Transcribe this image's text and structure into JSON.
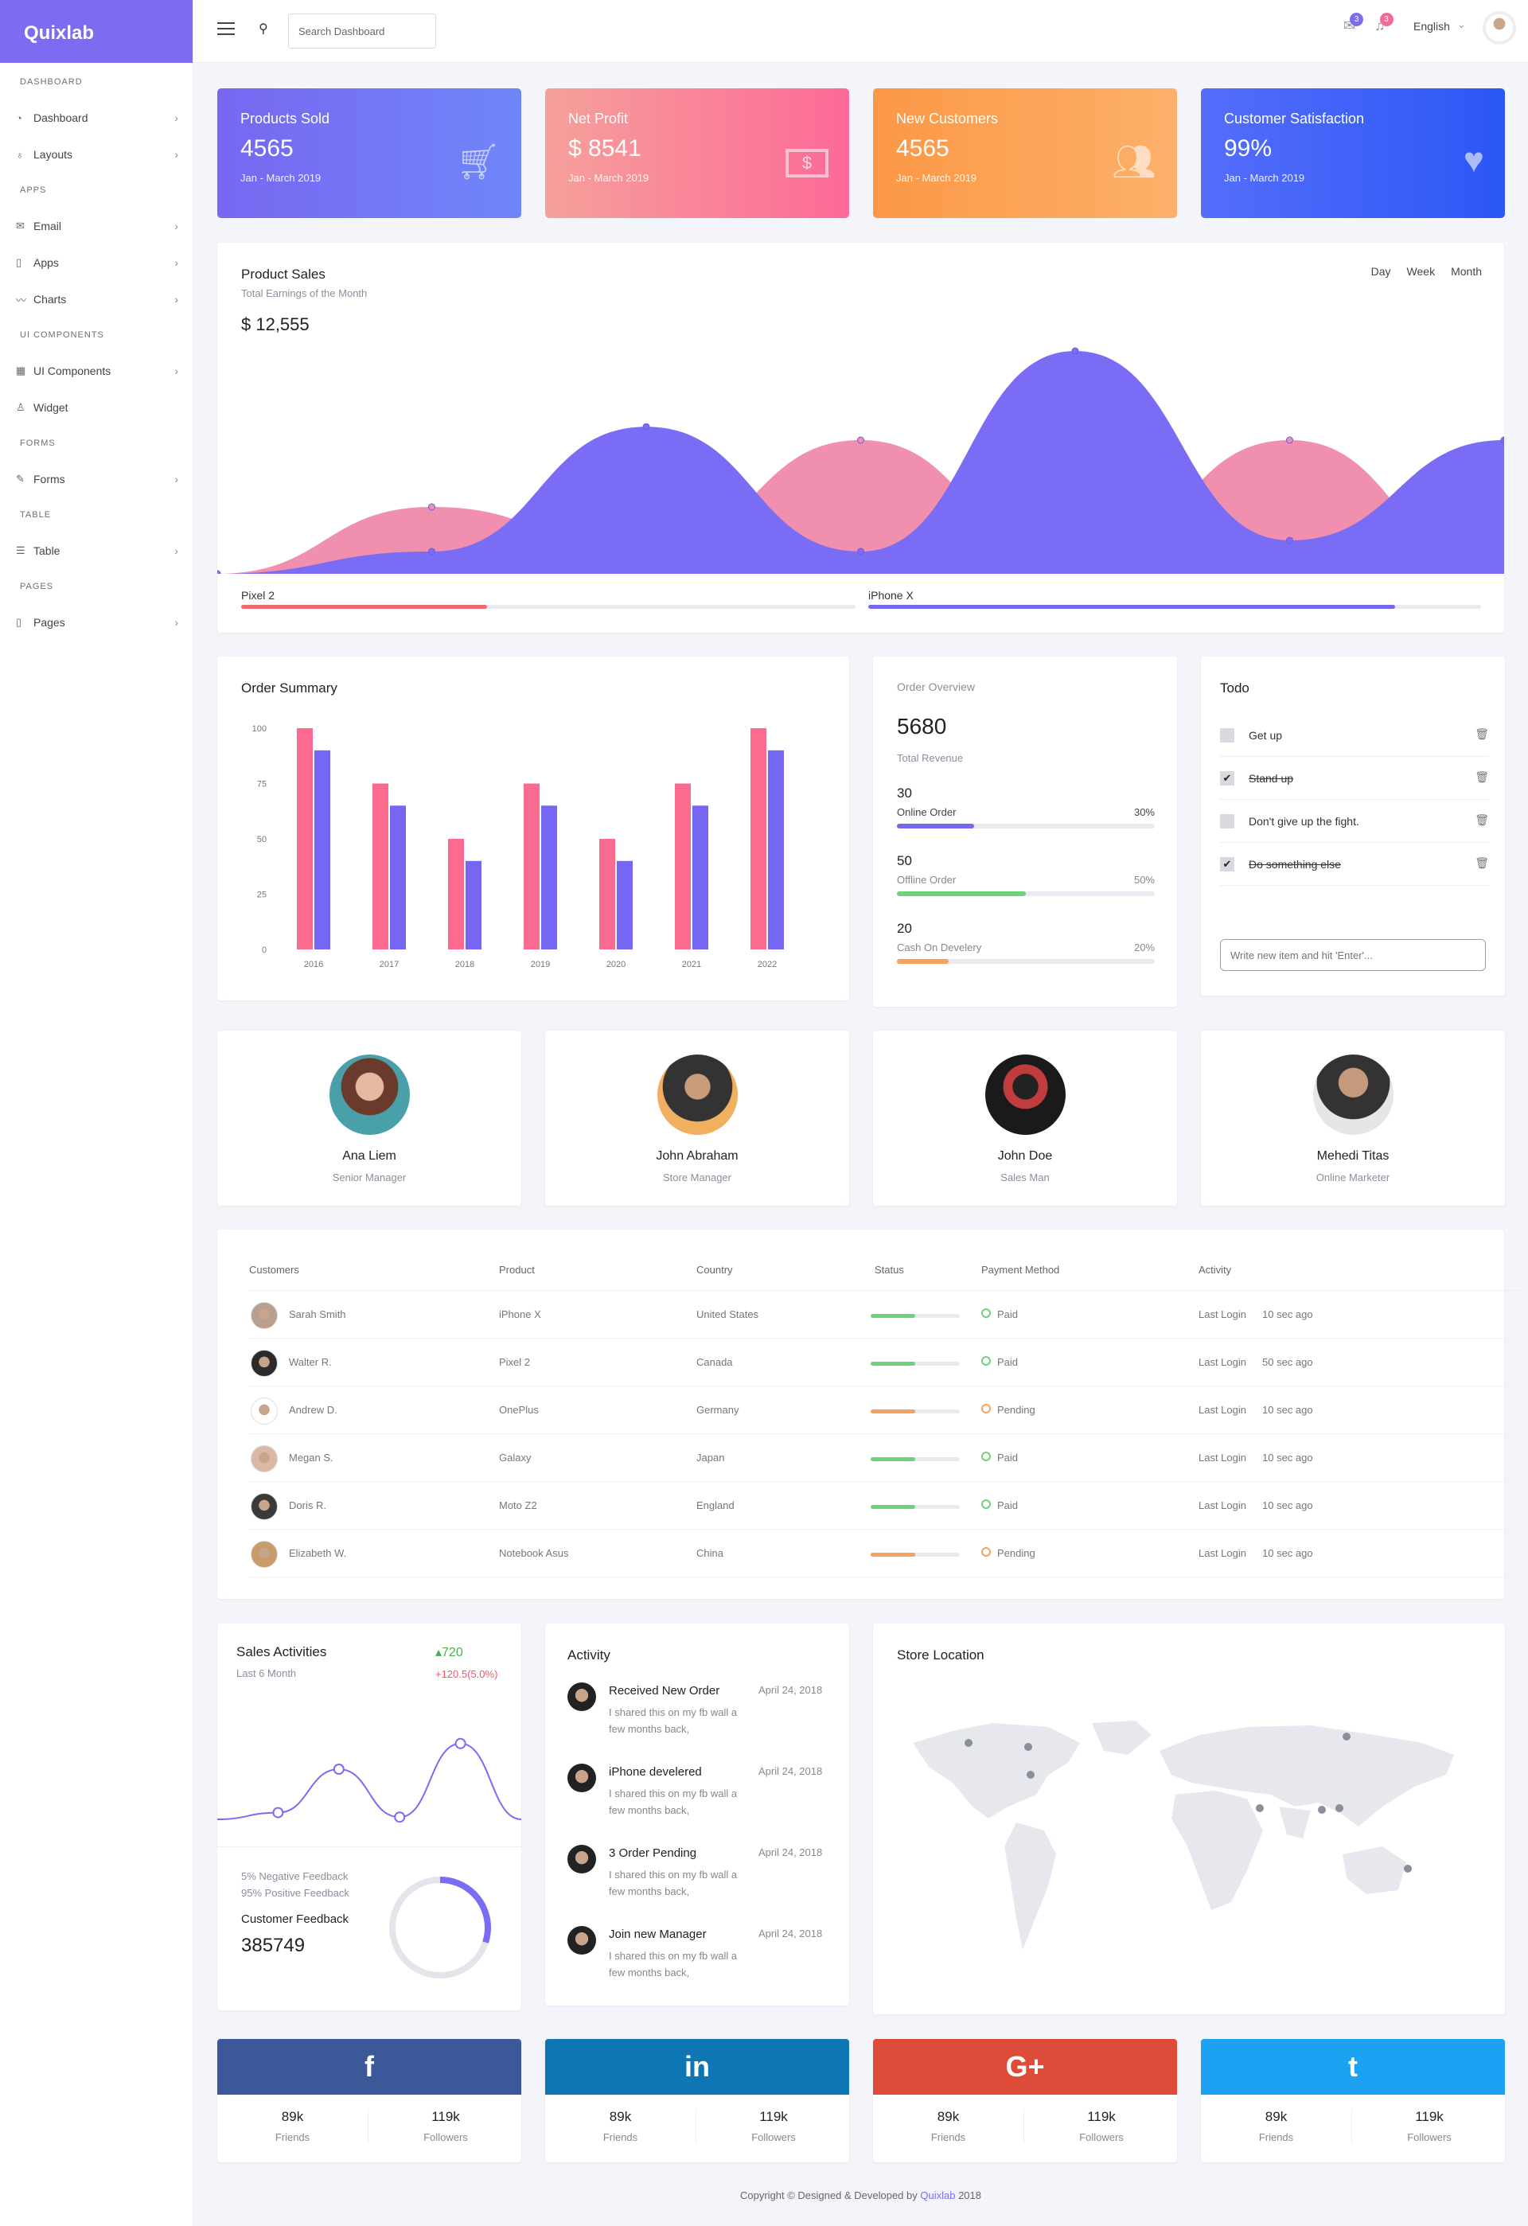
{
  "sidebar": {
    "brand": "Quixlab",
    "sections": {
      "dashboard": "DASHBOARD",
      "apps": "APPS",
      "ui": "UI COMPONENTS",
      "forms": "FORMS",
      "table": "TABLE",
      "pages": "PAGES"
    },
    "items": {
      "dashboard": "Dashboard",
      "layouts": "Layouts",
      "email": "Email",
      "apps": "Apps",
      "charts": "Charts",
      "ui_components": "UI Components",
      "widget": "Widget",
      "forms": "Forms",
      "table": "Table",
      "pages": "Pages"
    }
  },
  "topbar": {
    "search_placeholder": "Search Dashboard",
    "mail_badge": "3",
    "notif_badge": "3",
    "language": "English",
    "colors": {
      "mail_badge": "#7c6cf2",
      "notif_badge": "#f06b96"
    }
  },
  "stats": [
    {
      "title": "Products Sold",
      "value": "4565",
      "period": "Jan - March 2019",
      "icon": "cart-icon",
      "colors": [
        "#7867f1",
        "#6f86f9"
      ]
    },
    {
      "title": "Net Profit",
      "value": "$ 8541",
      "period": "Jan - March 2019",
      "icon": "money-icon",
      "colors": [
        "#f6a09b",
        "#fc6a97"
      ]
    },
    {
      "title": "New Customers",
      "value": "4565",
      "period": "Jan - March 2019",
      "icon": "users-icon",
      "colors": [
        "#fb9846",
        "#fdb06a"
      ]
    },
    {
      "title": "Customer Satisfaction",
      "value": "99%",
      "period": "Jan - March 2019",
      "icon": "heart-icon",
      "colors": [
        "#556dfb",
        "#2b57f5"
      ]
    }
  ],
  "product_sales": {
    "title": "Product Sales",
    "subtitle": "Total Earnings of the Month",
    "amount": "$ 12,555",
    "tabs": [
      "Day",
      "Week",
      "Month"
    ],
    "legend": [
      {
        "name": "Pixel 2",
        "progress": 0.4,
        "color": "#f06b6b"
      },
      {
        "name": "iPhone X",
        "progress": 0.86,
        "color": "#7467f0"
      }
    ]
  },
  "chart_data": [
    {
      "type": "area",
      "title": "Product Sales",
      "series": [
        {
          "name": "Pixel 2",
          "color": "#f08fae",
          "values": [
            0,
            30,
            10,
            60,
            5,
            60,
            0
          ]
        },
        {
          "name": "iPhone X",
          "color": "#7a6cf5",
          "values": [
            0,
            10,
            66,
            10,
            100,
            15,
            60
          ]
        }
      ],
      "ylim": [
        0,
        100
      ]
    },
    {
      "type": "bar",
      "title": "Order Summary",
      "categories": [
        "2016",
        "2017",
        "2018",
        "2019",
        "2020",
        "2021",
        "2022"
      ],
      "series": [
        {
          "color": "#fb6a8f",
          "values": [
            100,
            75,
            50,
            75,
            50,
            75,
            100
          ]
        },
        {
          "color": "#7567f3",
          "values": [
            90,
            65,
            40,
            65,
            40,
            65,
            90
          ]
        }
      ],
      "ylim": [
        0,
        100
      ],
      "yticks": [
        "100",
        "75",
        "50",
        "25",
        "0"
      ]
    },
    {
      "type": "line",
      "title": "Sales Activities",
      "values": [
        10,
        16,
        55,
        12,
        78,
        10
      ],
      "color": "#7a6cf5"
    }
  ],
  "order_summary": {
    "title": "Order Summary"
  },
  "order_overview": {
    "title": "Order Overview",
    "total": "5680",
    "total_label": "Total Revenue",
    "items": [
      {
        "count": "30",
        "label": "Online Order",
        "pct_text": "30%",
        "progress": 0.3,
        "color": "#7467f0"
      },
      {
        "count": "50",
        "label": "Offline Order",
        "pct_text": "50%",
        "progress": 0.5,
        "color": "#6fd27a"
      },
      {
        "count": "20",
        "label": "Cash On Develery",
        "pct_text": "20%",
        "progress": 0.2,
        "color": "#f6a25c"
      }
    ]
  },
  "todo": {
    "title": "Todo",
    "items": [
      {
        "text": "Get up",
        "done": false
      },
      {
        "text": "Stand up",
        "done": true
      },
      {
        "text": "Don't give up the fight.",
        "done": false
      },
      {
        "text": "Do something else",
        "done": true
      }
    ],
    "input_placeholder": "Write new item and hit 'Enter'..."
  },
  "people": [
    {
      "name": "Ana Liem",
      "role": "Senior Manager"
    },
    {
      "name": "John Abraham",
      "role": "Store Manager"
    },
    {
      "name": "John Doe",
      "role": "Sales Man"
    },
    {
      "name": "Mehedi Titas",
      "role": "Online Marketer"
    }
  ],
  "orders_table": {
    "headers": [
      "Customers",
      "Product",
      "Country",
      "Status",
      "Payment Method",
      "Activity"
    ],
    "rows": [
      {
        "customer": "Sarah Smith",
        "product": "iPhone X",
        "country": "United States",
        "status": "ok",
        "payment": "Paid",
        "activity": "Last Login",
        "time": "10 sec ago"
      },
      {
        "customer": "Walter R.",
        "product": "Pixel 2",
        "country": "Canada",
        "status": "ok",
        "payment": "Paid",
        "activity": "Last Login",
        "time": "50 sec ago"
      },
      {
        "customer": "Andrew D.",
        "product": "OnePlus",
        "country": "Germany",
        "status": "warn",
        "payment": "Pending",
        "activity": "Last Login",
        "time": "10 sec ago"
      },
      {
        "customer": "Megan S.",
        "product": "Galaxy",
        "country": "Japan",
        "status": "ok",
        "payment": "Paid",
        "activity": "Last Login",
        "time": "10 sec ago"
      },
      {
        "customer": "Doris R.",
        "product": "Moto Z2",
        "country": "England",
        "status": "ok",
        "payment": "Paid",
        "activity": "Last Login",
        "time": "10 sec ago"
      },
      {
        "customer": "Elizabeth W.",
        "product": "Notebook Asus",
        "country": "China",
        "status": "warn",
        "payment": "Pending",
        "activity": "Last Login",
        "time": "10 sec ago"
      }
    ],
    "status_progress": 0.5,
    "colors": {
      "ok": "#6fd27a",
      "warn": "#f6a25c"
    }
  },
  "sales_activities": {
    "title": "Sales Activities",
    "subtitle": "Last 6 Month",
    "delta": "720",
    "delta_pct": "+120.5(5.0%)",
    "negative": "5% Negative Feedback",
    "positive": "95% Positive Feedback",
    "feedback_label": "Customer Feedback",
    "feedback_value": "385749",
    "donut_progress": 0.3
  },
  "activity": {
    "title": "Activity",
    "items": [
      {
        "title": "Received New Order",
        "date": "April 24, 2018",
        "text": "I shared this on my fb wall a few months back,"
      },
      {
        "title": "iPhone develered",
        "date": "April 24, 2018",
        "text": "I shared this on my fb wall a few months back,"
      },
      {
        "title": "3 Order Pending",
        "date": "April 24, 2018",
        "text": "I shared this on my fb wall a few months back,"
      },
      {
        "title": "Join new Manager",
        "date": "April 24, 2018",
        "text": "I shared this on my fb wall a few months back,"
      }
    ]
  },
  "store_location": {
    "title": "Store Location"
  },
  "social": [
    {
      "icon": "facebook-icon",
      "glyph": "f",
      "color": "#3b5998",
      "friends": "89k",
      "friends_label": "Friends",
      "followers": "119k",
      "followers_label": "Followers"
    },
    {
      "icon": "linkedin-icon",
      "glyph": "in",
      "color": "#0e76b3",
      "friends": "89k",
      "friends_label": "Friends",
      "followers": "119k",
      "followers_label": "Followers"
    },
    {
      "icon": "google-plus-icon",
      "glyph": "G+",
      "color": "#dd4b39",
      "friends": "89k",
      "friends_label": "Friends",
      "followers": "119k",
      "followers_label": "Followers"
    },
    {
      "icon": "twitter-icon",
      "glyph": "t",
      "color": "#1da1f2",
      "friends": "89k",
      "friends_label": "Friends",
      "followers": "119k",
      "followers_label": "Followers"
    }
  ],
  "footer": {
    "text": "Copyright © Designed & Developed by",
    "brand": "Quixlab",
    "year": "2018"
  }
}
